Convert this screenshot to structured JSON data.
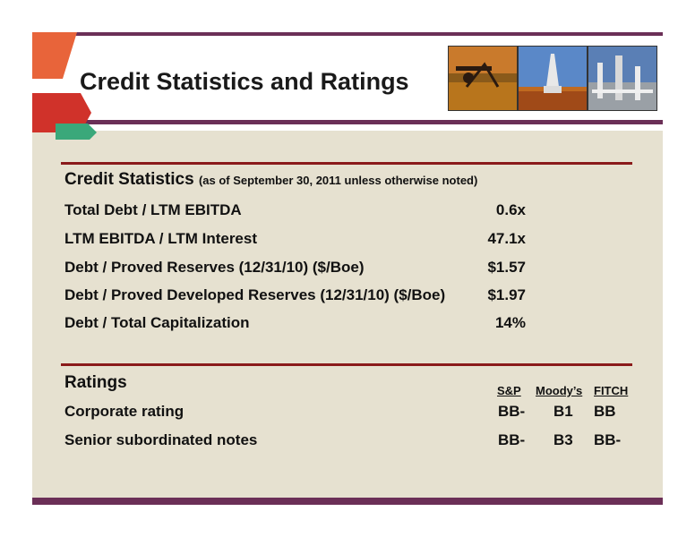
{
  "header": {
    "title": "Credit Statistics and Ratings",
    "photos": [
      "pumpjack-photo",
      "drilling-rig-photo",
      "plant-photo"
    ]
  },
  "credit_statistics": {
    "heading": "Credit Statistics",
    "note": "(as of September 30, 2011 unless otherwise noted)",
    "rows": [
      {
        "label": "Total Debt / LTM EBITDA",
        "value": "0.6x"
      },
      {
        "label": "LTM EBITDA / LTM Interest",
        "value": "47.1x"
      },
      {
        "label": "Debt / Proved Reserves (12/31/10) ($/Boe)",
        "value": "$1.57"
      },
      {
        "label": "Debt / Proved Developed Reserves (12/31/10) ($/Boe)",
        "value": "$1.97"
      },
      {
        "label": "Debt / Total Capitalization",
        "value": "14%"
      }
    ]
  },
  "ratings": {
    "heading": "Ratings",
    "columns": [
      "S&P",
      "Moody’s",
      "FITCH"
    ],
    "rows": [
      {
        "label": "Corporate rating",
        "values": [
          "BB-",
          "B1",
          "BB"
        ]
      },
      {
        "label": "Senior subordinated notes",
        "values": [
          "BB-",
          "B3",
          "BB-"
        ]
      }
    ]
  },
  "colors": {
    "accent_purple": "#6b2f57",
    "rule_red": "#8a1a1a",
    "panel_beige": "#e6e1d0",
    "arrow_orange": "#e8643a",
    "arrow_red": "#d0322a",
    "arrow_green": "#3aa87a"
  }
}
